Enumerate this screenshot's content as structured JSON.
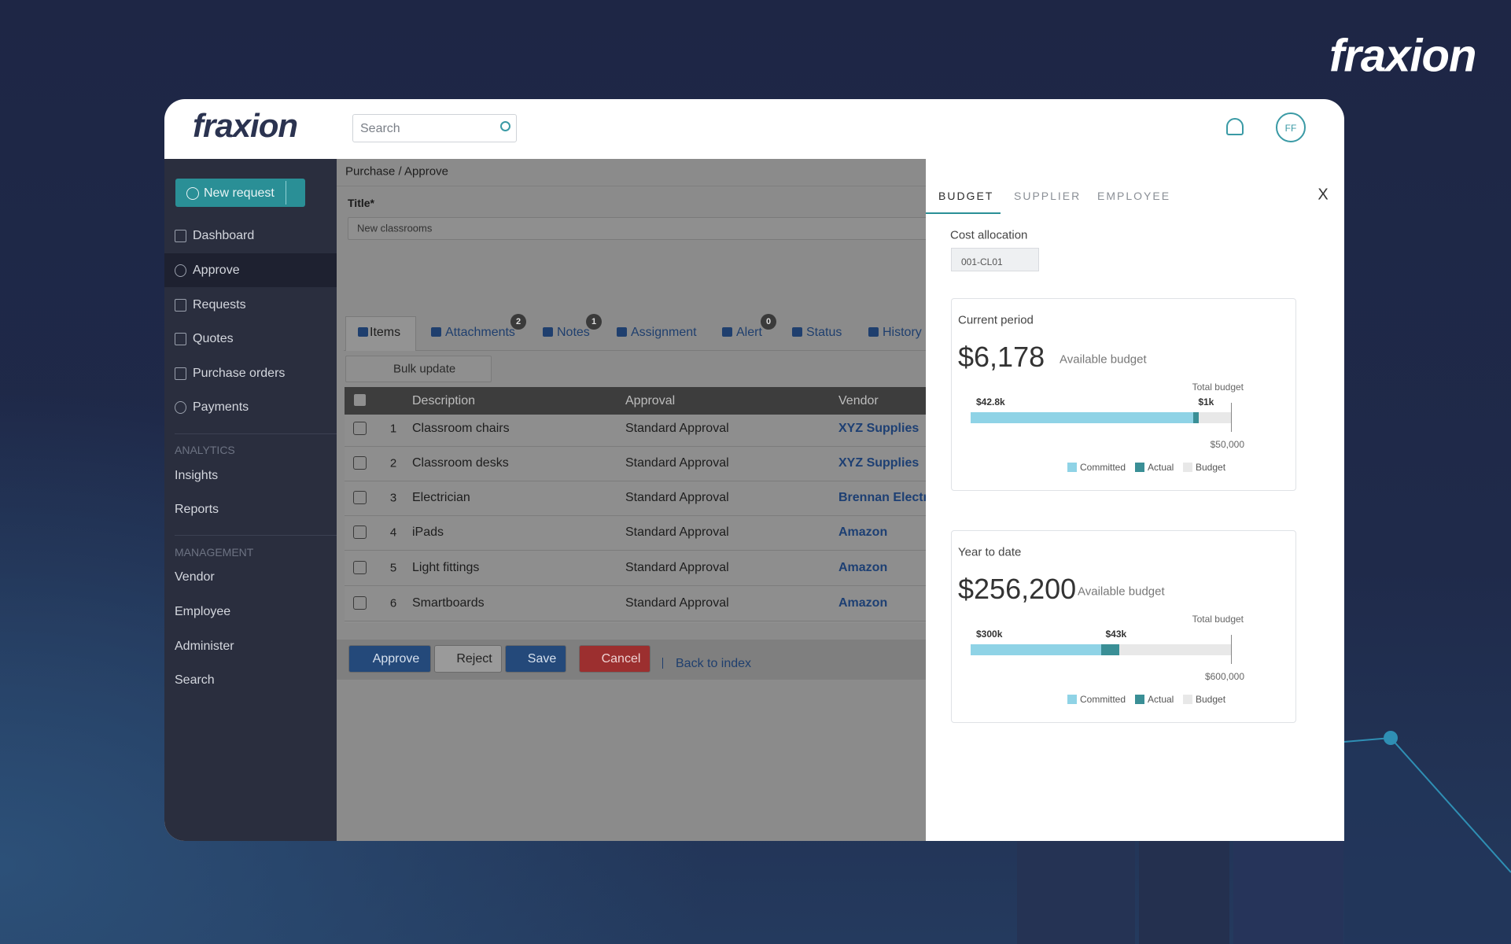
{
  "brand": "fraxion",
  "header": {
    "logo": "fraxion",
    "search_placeholder": "Search",
    "avatar": "FF"
  },
  "sidebar": {
    "new_request": "New request",
    "items": [
      "Dashboard",
      "Approve",
      "Requests",
      "Quotes",
      "Purchase orders",
      "Payments"
    ],
    "sections": [
      {
        "title": "ANALYTICS",
        "items": [
          "Insights",
          "Reports"
        ]
      },
      {
        "title": "MANAGEMENT",
        "items": [
          "Vendor",
          "Employee",
          "Administer",
          "Search"
        ]
      }
    ]
  },
  "main": {
    "breadcrumb": "Purchase / Approve",
    "title_label": "Title*",
    "title_value": "New classrooms",
    "tabs": [
      {
        "label": "Items"
      },
      {
        "label": "Attachments",
        "badge": 2
      },
      {
        "label": "Notes",
        "badge": 1
      },
      {
        "label": "Assignment"
      },
      {
        "label": "Alert",
        "badge": 0
      },
      {
        "label": "Status"
      },
      {
        "label": "History"
      }
    ],
    "bulk_update": "Bulk update",
    "table": {
      "columns": [
        "Description",
        "Approval",
        "Vendor"
      ],
      "rows": [
        [
          1,
          "Classroom chairs",
          "Standard Approval",
          "XYZ Supplies"
        ],
        [
          2,
          "Classroom desks",
          "Standard Approval",
          "XYZ Supplies"
        ],
        [
          3,
          "Electrician",
          "Standard Approval",
          "Brennan Electri"
        ],
        [
          4,
          "iPads",
          "Standard Approval",
          "Amazon"
        ],
        [
          5,
          "Light fittings",
          "Standard Approval",
          "Amazon"
        ],
        [
          6,
          "Smartboards",
          "Standard Approval",
          "Amazon"
        ]
      ]
    },
    "actions": [
      "Approve",
      "Reject",
      "Save",
      "Cancel"
    ],
    "back_link": "Back to index"
  },
  "panel": {
    "tabs": [
      "BUDGET",
      "SUPPLIER",
      "EMPLOYEE"
    ],
    "close": "X",
    "cost_allocation_label": "Cost allocation",
    "cost_allocation_value": "001-CL01",
    "cards": [
      {
        "title": "Current period",
        "available": {
          "value": 6178,
          "label": "$6,178"
        },
        "available_label": "Available budget",
        "total_label": "Total budget",
        "committed": {
          "value": 42800,
          "label": "$42.8k"
        },
        "actual": {
          "value": 1000,
          "label": "$1k"
        },
        "total": {
          "value": 50000,
          "label": "$50,000"
        },
        "legend": [
          "Committed",
          "Actual",
          "Budget"
        ]
      },
      {
        "title": "Year to date",
        "available": {
          "value": 256200,
          "label": "$256,200"
        },
        "available_label": "Available budget",
        "total_label": "Total budget",
        "committed": {
          "value": 300000,
          "label": "$300k"
        },
        "actual": {
          "value": 43000,
          "label": "$43k"
        },
        "total": {
          "value": 600000,
          "label": "$600,000"
        },
        "legend": [
          "Committed",
          "Actual",
          "Budget"
        ]
      }
    ]
  }
}
